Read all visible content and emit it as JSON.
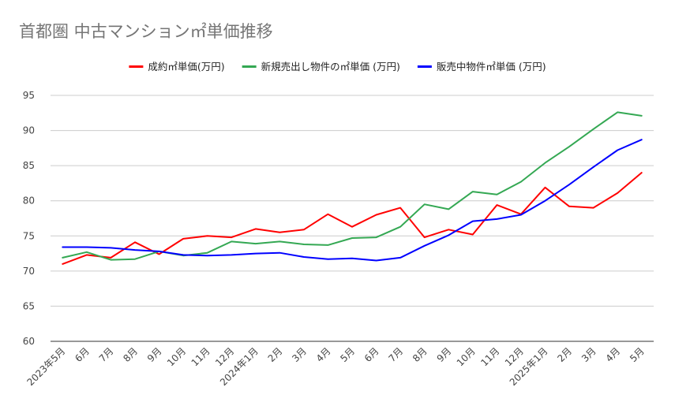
{
  "chart_data": {
    "type": "line",
    "title": "首都圏 中古マンション㎡単価推移",
    "xlabel": "",
    "ylabel": "",
    "ylim": [
      60,
      95
    ],
    "yticks": [
      60,
      65,
      70,
      75,
      80,
      85,
      90,
      95
    ],
    "grid": true,
    "legend": "top",
    "categories": [
      "2023年5月",
      "6月",
      "7月",
      "8月",
      "9月",
      "10月",
      "11月",
      "12月",
      "2024年1月",
      "2月",
      "3月",
      "4月",
      "5月",
      "6月",
      "7月",
      "8月",
      "9月",
      "10月",
      "11月",
      "12月",
      "2025年1月",
      "2月",
      "3月",
      "4月",
      "5月"
    ],
    "series": [
      {
        "name": "成約㎡単価(万円)",
        "color": "#ff0000",
        "values": [
          71.0,
          72.3,
          71.9,
          74.1,
          72.4,
          74.6,
          75.0,
          74.8,
          76.0,
          75.5,
          75.9,
          78.1,
          76.3,
          78.0,
          79.0,
          74.8,
          75.9,
          75.2,
          79.4,
          78.1,
          81.9,
          79.2,
          79.0,
          81.1,
          84.0
        ]
      },
      {
        "name": "新規売出し物件の㎡単価 (万円)",
        "color": "#34a853",
        "values": [
          71.9,
          72.7,
          71.6,
          71.7,
          72.8,
          72.2,
          72.6,
          74.2,
          73.9,
          74.2,
          73.8,
          73.7,
          74.7,
          74.8,
          76.3,
          79.5,
          78.8,
          81.3,
          80.9,
          82.7,
          85.4,
          87.7,
          90.2,
          92.6,
          92.1
        ]
      },
      {
        "name": "販売中物件㎡単価 (万円)",
        "color": "#0000ff",
        "values": [
          73.4,
          73.4,
          73.3,
          73.0,
          72.8,
          72.3,
          72.2,
          72.3,
          72.5,
          72.6,
          72.0,
          71.7,
          71.8,
          71.5,
          71.9,
          73.6,
          75.1,
          77.1,
          77.4,
          78.0,
          80.0,
          82.3,
          84.8,
          87.2,
          88.7
        ]
      }
    ]
  }
}
